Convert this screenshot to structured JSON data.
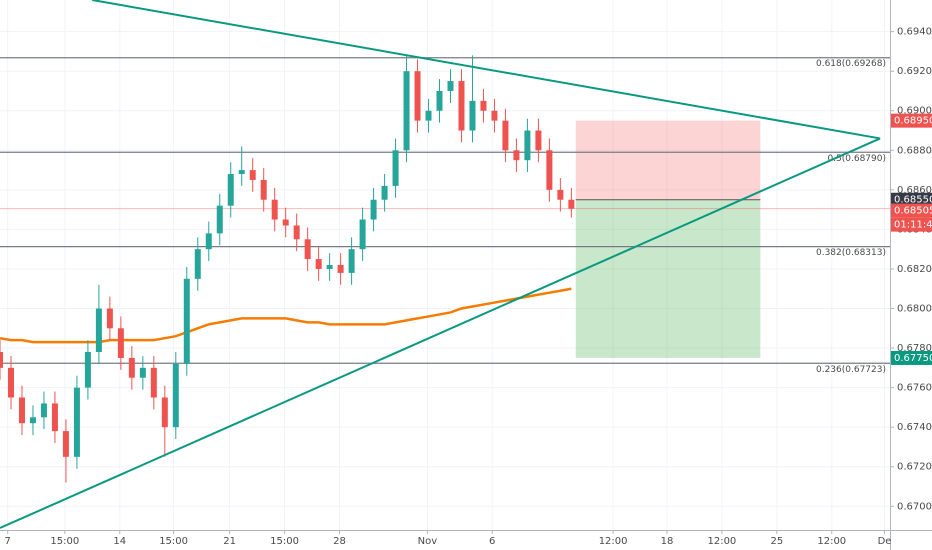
{
  "chart_data": {
    "type": "candlestick",
    "up_color": "#26a69a",
    "down_color": "#ef5350",
    "xlim": [
      0,
      81
    ],
    "ylim": [
      0.6688,
      0.6956
    ],
    "xticks": [
      {
        "value": 0.7,
        "label": "7"
      },
      {
        "value": 5.9,
        "label": "15:00"
      },
      {
        "value": 10.9,
        "label": "14"
      },
      {
        "value": 15.8,
        "label": "15:00"
      },
      {
        "value": 20.9,
        "label": "21"
      },
      {
        "value": 25.9,
        "label": "15:00"
      },
      {
        "value": 30.9,
        "label": "28"
      },
      {
        "value": 38.9,
        "label": "Nov"
      },
      {
        "value": 44.8,
        "label": "6"
      },
      {
        "value": 55.8,
        "label": "12:00"
      },
      {
        "value": 60.7,
        "label": "18"
      },
      {
        "value": 65.7,
        "label": "12:00"
      },
      {
        "value": 70.7,
        "label": "25"
      },
      {
        "value": 75.7,
        "label": "12:00"
      },
      {
        "value": 80.5,
        "label": "De"
      }
    ],
    "yticks": [
      {
        "value": 0.67,
        "label": "0.67000"
      },
      {
        "value": 0.672,
        "label": "0.67200"
      },
      {
        "value": 0.674,
        "label": "0.67400"
      },
      {
        "value": 0.676,
        "label": "0.67600"
      },
      {
        "value": 0.678,
        "label": "0.67800"
      },
      {
        "value": 0.68,
        "label": "0.68000"
      },
      {
        "value": 0.682,
        "label": "0.68200"
      },
      {
        "value": 0.684,
        "label": "0.68400"
      },
      {
        "value": 0.686,
        "label": "0.68600"
      },
      {
        "value": 0.688,
        "label": "0.68800"
      },
      {
        "value": 0.69,
        "label": "0.69000"
      },
      {
        "value": 0.692,
        "label": "0.69200"
      },
      {
        "value": 0.694,
        "label": "0.69400"
      }
    ],
    "open": [
      0.6778,
      0.677,
      0.6755,
      0.6742,
      0.6745,
      0.6752,
      0.6738,
      0.6725,
      0.676,
      0.6778,
      0.68,
      0.679,
      0.6775,
      0.6765,
      0.677,
      0.6755,
      0.674,
      0.6772,
      0.6815,
      0.683,
      0.6838,
      0.6852,
      0.6868,
      0.687,
      0.6865,
      0.6855,
      0.6845,
      0.6842,
      0.6835,
      0.6825,
      0.682,
      0.6822,
      0.6818,
      0.683,
      0.6845,
      0.6855,
      0.6862,
      0.688,
      0.692,
      0.6895,
      0.69,
      0.691,
      0.6915,
      0.689,
      0.6905,
      0.69,
      0.6895,
      0.688,
      0.6875,
      0.689,
      0.688,
      0.686,
      0.6855
    ],
    "high": [
      0.6784,
      0.6776,
      0.6761,
      0.6751,
      0.6758,
      0.6758,
      0.6744,
      0.6766,
      0.6784,
      0.6812,
      0.6806,
      0.6796,
      0.6781,
      0.6776,
      0.6776,
      0.6761,
      0.6778,
      0.6821,
      0.6836,
      0.6844,
      0.6858,
      0.6874,
      0.6882,
      0.6876,
      0.6871,
      0.6861,
      0.6851,
      0.6848,
      0.6841,
      0.6831,
      0.6828,
      0.6828,
      0.6836,
      0.6851,
      0.6861,
      0.6868,
      0.6886,
      0.6928,
      0.6926,
      0.6906,
      0.6916,
      0.6921,
      0.6921,
      0.6928,
      0.6911,
      0.6906,
      0.6901,
      0.6886,
      0.6896,
      0.6896,
      0.6886,
      0.6866,
      0.6861
    ],
    "low": [
      0.6764,
      0.6749,
      0.6736,
      0.6736,
      0.6739,
      0.6732,
      0.6712,
      0.6719,
      0.6754,
      0.6772,
      0.6784,
      0.6769,
      0.6759,
      0.6759,
      0.6749,
      0.6725,
      0.6734,
      0.6766,
      0.6809,
      0.6824,
      0.6832,
      0.6846,
      0.6862,
      0.6859,
      0.6849,
      0.6839,
      0.6836,
      0.6829,
      0.6819,
      0.6814,
      0.6814,
      0.6812,
      0.6812,
      0.6824,
      0.6839,
      0.6849,
      0.6856,
      0.6874,
      0.6889,
      0.6889,
      0.6894,
      0.6904,
      0.6884,
      0.6884,
      0.6894,
      0.6889,
      0.6874,
      0.6869,
      0.6869,
      0.6874,
      0.6854,
      0.6849,
      0.6846
    ],
    "close": [
      0.677,
      0.6755,
      0.6742,
      0.6745,
      0.6752,
      0.6738,
      0.6725,
      0.676,
      0.6778,
      0.68,
      0.679,
      0.6775,
      0.6765,
      0.677,
      0.6755,
      0.674,
      0.6772,
      0.6815,
      0.683,
      0.6838,
      0.6852,
      0.6868,
      0.687,
      0.6865,
      0.6855,
      0.6845,
      0.6842,
      0.6835,
      0.6825,
      0.682,
      0.6822,
      0.6818,
      0.683,
      0.6845,
      0.6855,
      0.6862,
      0.688,
      0.692,
      0.6895,
      0.69,
      0.691,
      0.6915,
      0.689,
      0.6905,
      0.69,
      0.6895,
      0.688,
      0.6875,
      0.689,
      0.688,
      0.686,
      0.6855,
      0.68505
    ],
    "ma": {
      "color": "#f57c00",
      "values": [
        0.6785,
        0.6784,
        0.6784,
        0.6783,
        0.6783,
        0.6783,
        0.6783,
        0.6783,
        0.6783,
        0.6783,
        0.6784,
        0.6784,
        0.6784,
        0.6784,
        0.6784,
        0.6785,
        0.6786,
        0.6788,
        0.679,
        0.6792,
        0.6793,
        0.6794,
        0.6795,
        0.6795,
        0.6795,
        0.6795,
        0.6795,
        0.6794,
        0.6793,
        0.6793,
        0.6792,
        0.6792,
        0.6792,
        0.6792,
        0.6792,
        0.6792,
        0.6793,
        0.6794,
        0.6795,
        0.6796,
        0.6797,
        0.6798,
        0.68,
        0.6801,
        0.6802,
        0.6803,
        0.6804,
        0.6805,
        0.6806,
        0.6807,
        0.6808,
        0.6809,
        0.681
      ]
    },
    "fib_levels": [
      {
        "value": 0.69268,
        "label": "0.618(0.69268)"
      },
      {
        "value": 0.6879,
        "label": "0.5(0.68790)"
      },
      {
        "value": 0.68313,
        "label": "0.382(0.68313)"
      },
      {
        "value": 0.67723,
        "label": "0.236(0.67723)"
      }
    ],
    "fib_color": "#787b86",
    "trendlines": {
      "color": "#089981",
      "lines": [
        {
          "x": [
            8.4,
            80.1
          ],
          "y": [
            0.6956,
            0.6886
          ]
        },
        {
          "x": [
            0,
            80.1
          ],
          "y": [
            0.6689,
            0.6886
          ]
        }
      ]
    },
    "position": {
      "x": [
        52.4,
        69.2
      ],
      "stop": {
        "value": 0.6895,
        "label": "0.68950",
        "color": "#ef5350"
      },
      "entry": {
        "value": 0.6855,
        "label": "0.68550",
        "color": "#363a45"
      },
      "target": {
        "value": 0.6775,
        "label": "0.67750",
        "color": "#089981"
      }
    },
    "last_price": {
      "value": 0.68505,
      "label": "0.68505",
      "color": "#ef5350"
    },
    "countdown": "01:11:43"
  }
}
